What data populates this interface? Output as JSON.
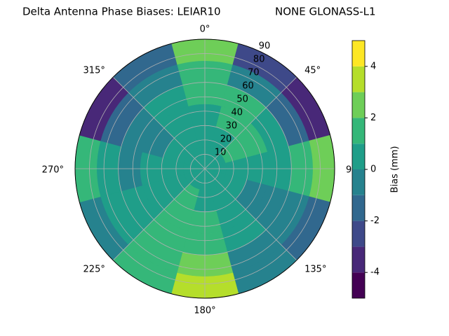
{
  "chart_data": {
    "type": "polar_contour",
    "title": "Delta Antenna Phase Biases: LEIAR10",
    "title_right": "NONE GLONASS-L1",
    "azimuths": [
      0,
      30,
      60,
      90,
      120,
      150,
      180,
      210,
      240,
      270,
      300,
      330
    ],
    "zeniths": [
      7.5,
      22.5,
      37.5,
      52.5,
      67.5,
      82.5
    ],
    "values": [
      [
        0.5,
        0.5,
        0.5,
        0.5,
        0.5,
        0.5,
        0.5,
        0.5,
        0.5,
        0.5,
        0.5,
        0.5
      ],
      [
        0.5,
        0.5,
        1.5,
        0.5,
        0.5,
        0.5,
        0.5,
        1.5,
        0.5,
        0.5,
        0.5,
        0.5
      ],
      [
        0.5,
        1.5,
        1.5,
        0.5,
        -0.5,
        0.5,
        1.5,
        1.5,
        0.5,
        0.5,
        -0.5,
        0.5
      ],
      [
        1.5,
        1.5,
        0.5,
        0.5,
        -0.5,
        0.5,
        1.5,
        1.5,
        0.5,
        -0.5,
        -0.5,
        0.5
      ],
      [
        1.5,
        -0.5,
        -1.5,
        1.5,
        -0.5,
        -0.5,
        2.5,
        1.5,
        0.5,
        0.5,
        -1.5,
        -0.5
      ],
      [
        2.5,
        -2.5,
        -3.5,
        2.5,
        -1.5,
        -0.5,
        3.5,
        1.5,
        -0.5,
        1.5,
        -3.5,
        -1.5
      ]
    ],
    "rlim": [
      0,
      90
    ],
    "rticks": [
      10,
      20,
      30,
      40,
      50,
      60,
      70,
      80,
      90
    ],
    "thetaticks": [
      {
        "value": 0,
        "label": "0°"
      },
      {
        "value": 45,
        "label": "45°"
      },
      {
        "value": 90,
        "label": "90°"
      },
      {
        "value": 135,
        "label": "135°"
      },
      {
        "value": 180,
        "label": "180°"
      },
      {
        "value": 225,
        "label": "225°"
      },
      {
        "value": 270,
        "label": "270°"
      },
      {
        "value": 315,
        "label": "315°"
      }
    ],
    "levels": [
      -5,
      -4,
      -3,
      -2,
      -1,
      0,
      1,
      2,
      3,
      4,
      5
    ],
    "colors": [
      "#440154",
      "#482878",
      "#3e4989",
      "#31688e",
      "#26828e",
      "#1f9e89",
      "#35b779",
      "#6ece58",
      "#b5de2b",
      "#fde725"
    ],
    "colorbar_label": "Bias (mm)",
    "colorbar_ticks": [
      -4,
      -2,
      0,
      2,
      4
    ],
    "grid": true
  }
}
